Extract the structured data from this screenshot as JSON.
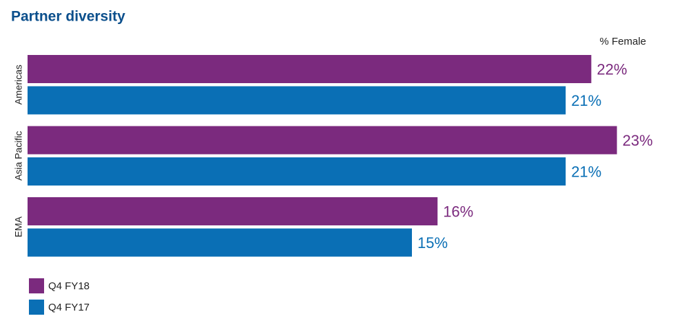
{
  "chart_data": {
    "type": "hbar",
    "title": "Partner diversity",
    "value_axis_label": "% Female",
    "categories": [
      "Americas",
      "Asia Pacific",
      "EMA"
    ],
    "series": [
      {
        "name": "Q4 FY18",
        "color": "#7b2a7e",
        "values": [
          22,
          23,
          16
        ],
        "value_labels": [
          "22%",
          "23%",
          "16%"
        ]
      },
      {
        "name": "Q4 FY17",
        "color": "#0a6fb5",
        "values": [
          21,
          21,
          15
        ],
        "value_labels": [
          "21%",
          "21%",
          "15%"
        ]
      }
    ]
  }
}
